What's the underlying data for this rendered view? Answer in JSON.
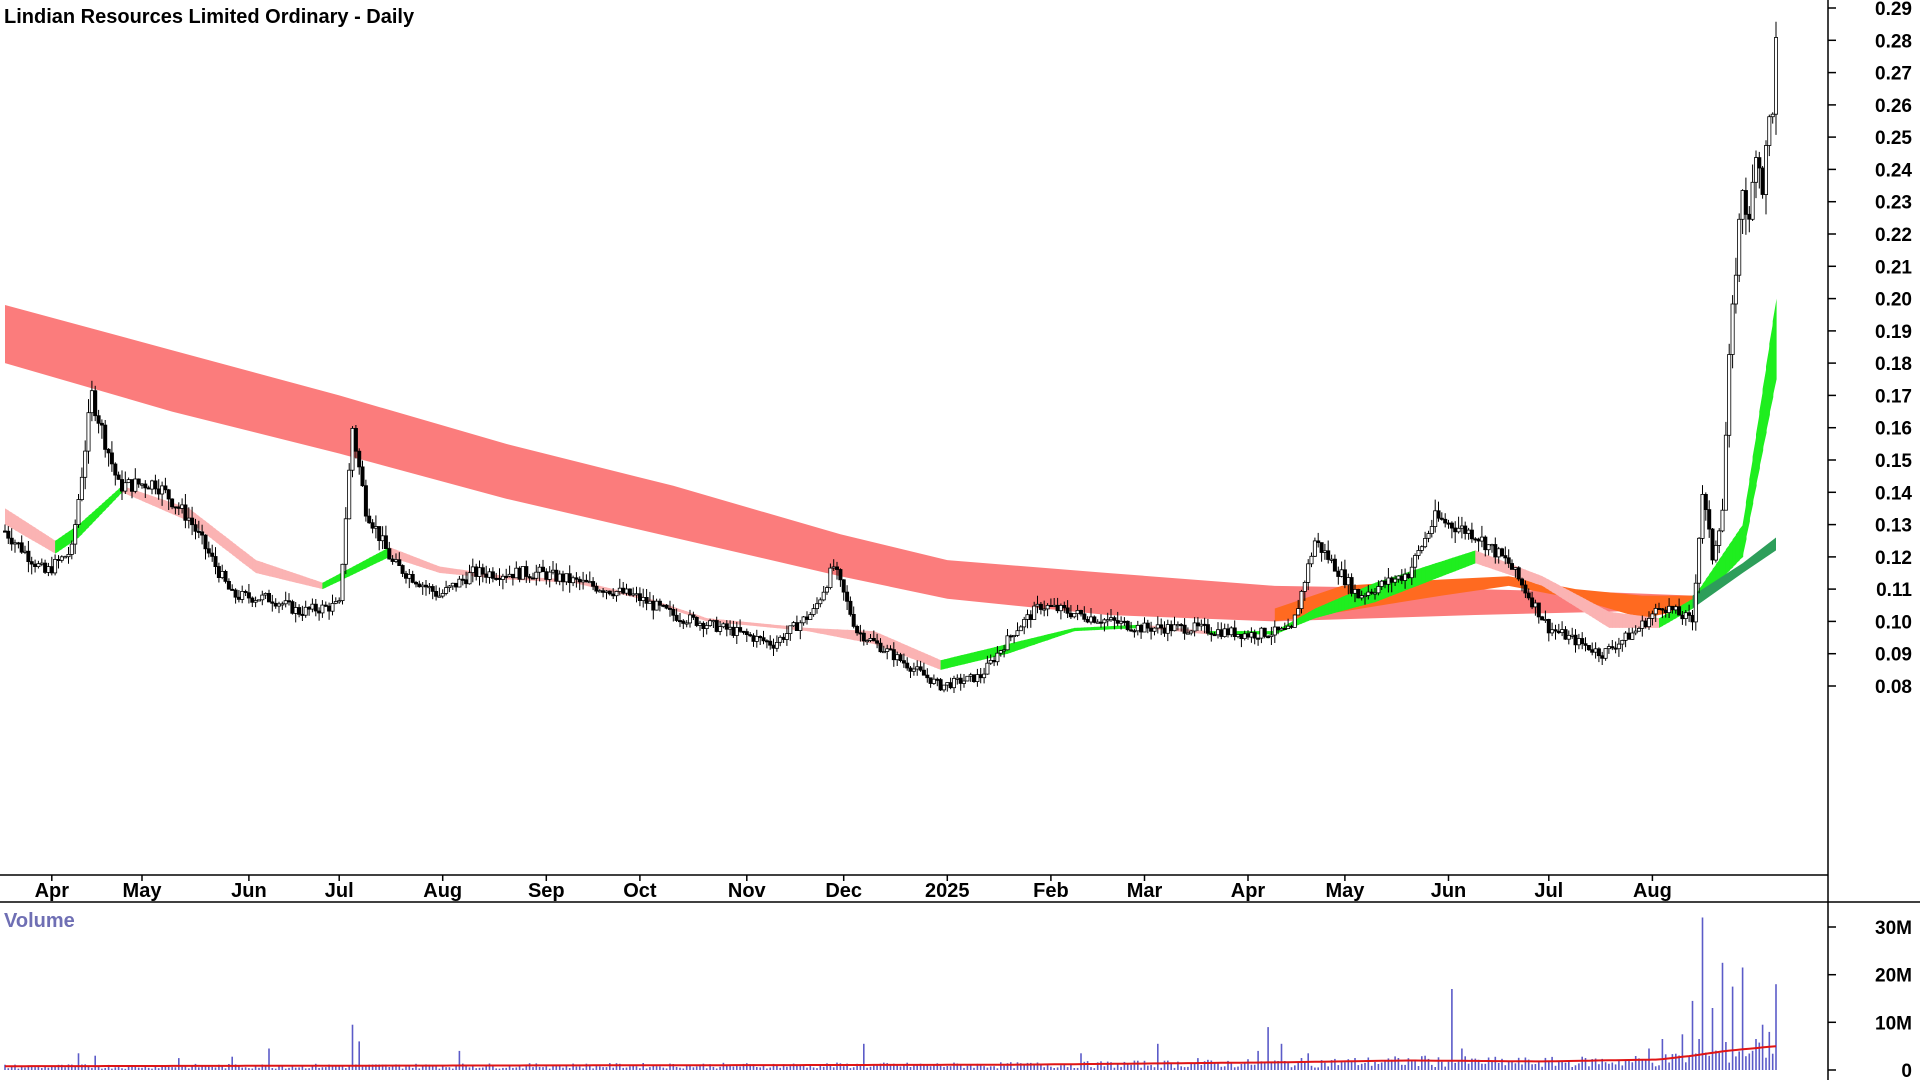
{
  "chart_data": [
    {
      "type": "candlestick",
      "title": "Lindian Resources Limited Ordinary - Daily",
      "ylim": [
        0.07,
        0.29
      ],
      "y_ticks": [
        "0.29",
        "0.28",
        "0.27",
        "0.26",
        "0.25",
        "0.24",
        "0.23",
        "0.22",
        "0.21",
        "0.20",
        "0.19",
        "0.18",
        "0.17",
        "0.16",
        "0.15",
        "0.14",
        "0.13",
        "0.12",
        "0.11",
        "0.10",
        "0.09",
        "0.08"
      ],
      "x_ticks": [
        "Apr",
        "May",
        "Jun",
        "Jul",
        "Aug",
        "Sep",
        "Oct",
        "Nov",
        "Dec",
        "2025",
        "Feb",
        "Mar",
        "Apr",
        "May",
        "Jun",
        "Jul",
        "Aug"
      ],
      "x_tick_days": [
        14,
        41,
        73,
        100,
        131,
        162,
        190,
        222,
        251,
        282,
        313,
        341,
        372,
        401,
        432,
        462,
        493
      ],
      "day_range": [
        0,
        530
      ],
      "price_path": [
        [
          0,
          0.128
        ],
        [
          12,
          0.115
        ],
        [
          20,
          0.122
        ],
        [
          26,
          0.17
        ],
        [
          34,
          0.142
        ],
        [
          45,
          0.143
        ],
        [
          55,
          0.132
        ],
        [
          68,
          0.108
        ],
        [
          80,
          0.107
        ],
        [
          88,
          0.103
        ],
        [
          100,
          0.105
        ],
        [
          104,
          0.16
        ],
        [
          108,
          0.135
        ],
        [
          116,
          0.118
        ],
        [
          130,
          0.108
        ],
        [
          140,
          0.115
        ],
        [
          160,
          0.115
        ],
        [
          172,
          0.112
        ],
        [
          188,
          0.108
        ],
        [
          200,
          0.102
        ],
        [
          218,
          0.097
        ],
        [
          230,
          0.093
        ],
        [
          242,
          0.103
        ],
        [
          248,
          0.117
        ],
        [
          255,
          0.097
        ],
        [
          268,
          0.088
        ],
        [
          280,
          0.08
        ],
        [
          292,
          0.083
        ],
        [
          302,
          0.097
        ],
        [
          310,
          0.105
        ],
        [
          322,
          0.102
        ],
        [
          340,
          0.098
        ],
        [
          355,
          0.098
        ],
        [
          372,
          0.096
        ],
        [
          385,
          0.097
        ],
        [
          392,
          0.125
        ],
        [
          405,
          0.108
        ],
        [
          420,
          0.115
        ],
        [
          428,
          0.132
        ],
        [
          440,
          0.127
        ],
        [
          450,
          0.118
        ],
        [
          462,
          0.098
        ],
        [
          478,
          0.09
        ],
        [
          488,
          0.097
        ],
        [
          496,
          0.105
        ],
        [
          505,
          0.1
        ],
        [
          508,
          0.14
        ],
        [
          511,
          0.12
        ],
        [
          514,
          0.135
        ],
        [
          516,
          0.18
        ],
        [
          518,
          0.21
        ],
        [
          520,
          0.235
        ],
        [
          522,
          0.222
        ],
        [
          524,
          0.248
        ],
        [
          526,
          0.235
        ],
        [
          528,
          0.255
        ],
        [
          529,
          0.26
        ],
        [
          530,
          0.278
        ]
      ],
      "long_band": {
        "color": "#fb7c7c",
        "upper": [
          [
            0,
            0.198
          ],
          [
            50,
            0.184
          ],
          [
            100,
            0.17
          ],
          [
            150,
            0.155
          ],
          [
            200,
            0.142
          ],
          [
            250,
            0.127
          ],
          [
            282,
            0.119
          ],
          [
            330,
            0.115
          ],
          [
            380,
            0.111
          ],
          [
            440,
            0.11
          ],
          [
            480,
            0.109
          ],
          [
            505,
            0.108
          ]
        ],
        "lower": [
          [
            0,
            0.18
          ],
          [
            50,
            0.165
          ],
          [
            100,
            0.152
          ],
          [
            150,
            0.138
          ],
          [
            200,
            0.126
          ],
          [
            250,
            0.114
          ],
          [
            282,
            0.107
          ],
          [
            330,
            0.102
          ],
          [
            380,
            0.1
          ],
          [
            440,
            0.102
          ],
          [
            480,
            0.103
          ],
          [
            505,
            0.104
          ]
        ]
      },
      "short_band": {
        "up_color": "#1fee1f",
        "down_color": "#fbb3b3",
        "upper": [
          [
            0,
            0.135
          ],
          [
            15,
            0.125
          ],
          [
            22,
            0.13
          ],
          [
            35,
            0.142
          ],
          [
            55,
            0.135
          ],
          [
            75,
            0.119
          ],
          [
            95,
            0.112
          ],
          [
            115,
            0.123
          ],
          [
            130,
            0.117
          ],
          [
            150,
            0.114
          ],
          [
            170,
            0.113
          ],
          [
            190,
            0.108
          ],
          [
            210,
            0.101
          ],
          [
            240,
            0.098
          ],
          [
            260,
            0.097
          ],
          [
            280,
            0.088
          ],
          [
            300,
            0.093
          ],
          [
            320,
            0.098
          ],
          [
            340,
            0.099
          ],
          [
            360,
            0.097
          ],
          [
            380,
            0.097
          ],
          [
            392,
            0.104
          ],
          [
            410,
            0.112
          ],
          [
            440,
            0.122
          ],
          [
            460,
            0.114
          ],
          [
            480,
            0.103
          ],
          [
            495,
            0.101
          ],
          [
            505,
            0.107
          ],
          [
            520,
            0.13
          ],
          [
            530,
            0.2
          ]
        ],
        "lower": [
          [
            0,
            0.13
          ],
          [
            15,
            0.121
          ],
          [
            22,
            0.126
          ],
          [
            35,
            0.14
          ],
          [
            55,
            0.131
          ],
          [
            75,
            0.115
          ],
          [
            95,
            0.11
          ],
          [
            115,
            0.12
          ],
          [
            130,
            0.115
          ],
          [
            150,
            0.113
          ],
          [
            170,
            0.112
          ],
          [
            190,
            0.107
          ],
          [
            210,
            0.1
          ],
          [
            240,
            0.097
          ],
          [
            260,
            0.093
          ],
          [
            280,
            0.085
          ],
          [
            300,
            0.09
          ],
          [
            320,
            0.097
          ],
          [
            340,
            0.098
          ],
          [
            360,
            0.096
          ],
          [
            380,
            0.096
          ],
          [
            392,
            0.101
          ],
          [
            410,
            0.106
          ],
          [
            440,
            0.118
          ],
          [
            460,
            0.111
          ],
          [
            480,
            0.098
          ],
          [
            495,
            0.098
          ],
          [
            505,
            0.104
          ],
          [
            520,
            0.12
          ],
          [
            530,
            0.175
          ]
        ]
      },
      "orange_band": {
        "color": "#ff6a20",
        "upper": [
          [
            380,
            0.104
          ],
          [
            400,
            0.111
          ],
          [
            430,
            0.113
          ],
          [
            450,
            0.114
          ],
          [
            470,
            0.11
          ],
          [
            490,
            0.108
          ],
          [
            505,
            0.108
          ]
        ],
        "lower": [
          [
            380,
            0.1
          ],
          [
            400,
            0.103
          ],
          [
            430,
            0.108
          ],
          [
            450,
            0.111
          ],
          [
            470,
            0.107
          ],
          [
            490,
            0.101
          ],
          [
            505,
            0.104
          ]
        ]
      },
      "trend_tail": {
        "color": "#2d9e5a",
        "upper": [
          [
            505,
            0.108
          ],
          [
            520,
            0.118
          ],
          [
            530,
            0.126
          ]
        ],
        "lower": [
          [
            505,
            0.104
          ],
          [
            520,
            0.115
          ],
          [
            530,
            0.122
          ]
        ]
      }
    },
    {
      "type": "bar",
      "title": "Volume",
      "ylim": [
        0,
        32000000
      ],
      "y_ticks": [
        "30M",
        "20M",
        "10M",
        "0"
      ],
      "y_tick_values": [
        30000000,
        20000000,
        10000000,
        0
      ],
      "bar_color": "#5b5bc8",
      "avg_color": "#e01515",
      "spikes": [
        [
          22,
          3500000
        ],
        [
          27,
          3000000
        ],
        [
          52,
          2500000
        ],
        [
          68,
          2800000
        ],
        [
          79,
          4500000
        ],
        [
          104,
          9500000
        ],
        [
          106,
          6000000
        ],
        [
          136,
          4000000
        ],
        [
          257,
          5500000
        ],
        [
          322,
          3500000
        ],
        [
          345,
          5500000
        ],
        [
          357,
          2500000
        ],
        [
          375,
          4000000
        ],
        [
          378,
          9000000
        ],
        [
          382,
          5500000
        ],
        [
          390,
          3500000
        ],
        [
          425,
          3000000
        ],
        [
          433,
          17000000
        ],
        [
          436,
          4500000
        ],
        [
          492,
          4500000
        ],
        [
          496,
          6500000
        ],
        [
          502,
          7500000
        ],
        [
          505,
          14500000
        ],
        [
          507,
          6500000
        ],
        [
          508,
          32000000
        ],
        [
          511,
          13000000
        ],
        [
          514,
          22500000
        ],
        [
          517,
          17500000
        ],
        [
          520,
          21500000
        ],
        [
          524,
          6500000
        ],
        [
          526,
          9500000
        ],
        [
          528,
          8000000
        ],
        [
          530,
          18000000
        ]
      ],
      "avg_path": [
        [
          0,
          800000
        ],
        [
          100,
          900000
        ],
        [
          200,
          1000000
        ],
        [
          300,
          1100000
        ],
        [
          380,
          1600000
        ],
        [
          420,
          2000000
        ],
        [
          460,
          1800000
        ],
        [
          495,
          2200000
        ],
        [
          505,
          3000000
        ],
        [
          515,
          4000000
        ],
        [
          530,
          5000000
        ]
      ]
    }
  ]
}
